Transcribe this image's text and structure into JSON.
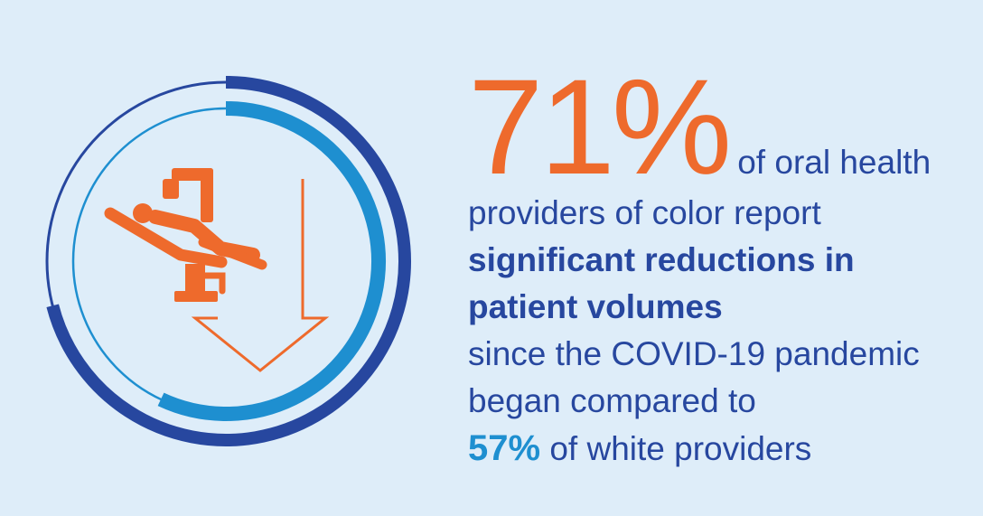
{
  "stat": {
    "primary_percent": "71%",
    "lead_text": "of oral health",
    "line2": "providers of color report",
    "bold_line1": "significant reductions in",
    "bold_line2": "patient volumes",
    "line5": "since the COVID-19 pandemic",
    "line6": "began compared to",
    "secondary_percent": "57%",
    "secondary_text": "of white providers"
  },
  "graphic": {
    "icon": "dental-chair-icon",
    "arrow_icon": "down-arrow-icon",
    "ring_outer_value_percent": 71,
    "ring_inner_value_percent": 57
  },
  "colors": {
    "background": "#deedf9",
    "orange": "#ee6a2c",
    "dark_blue": "#27479f",
    "light_blue": "#1e8fd0"
  }
}
